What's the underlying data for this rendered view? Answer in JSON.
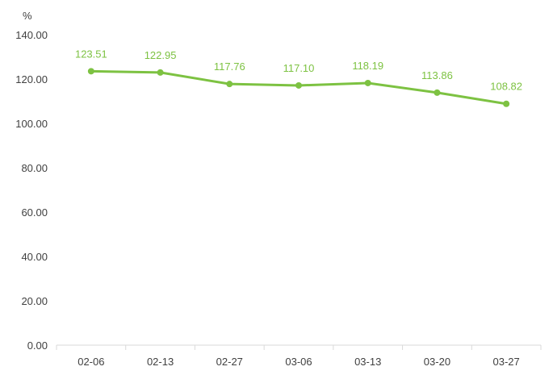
{
  "chart_data": {
    "type": "line",
    "title": "",
    "xlabel": "",
    "ylabel": "%",
    "categories": [
      "02-06",
      "02-13",
      "02-27",
      "03-06",
      "03-13",
      "03-20",
      "03-27"
    ],
    "series": [
      {
        "values": [
          123.51,
          122.95,
          117.76,
          117.1,
          118.19,
          113.86,
          108.82
        ],
        "color": "#7dc242"
      }
    ],
    "data_labels": [
      "123.51",
      "122.95",
      "117.76",
      "117.10",
      "118.19",
      "113.86",
      "108.82"
    ],
    "ylim": [
      0,
      140
    ],
    "yticks": [
      0,
      20,
      40,
      60,
      80,
      100,
      120,
      140
    ],
    "ytick_labels": [
      "0.00",
      "20.00",
      "40.00",
      "60.00",
      "80.00",
      "100.00",
      "120.00",
      "140.00"
    ],
    "grid": false,
    "legend": "none",
    "axis_color": "#d9d9d9",
    "text_color": "#404040"
  }
}
